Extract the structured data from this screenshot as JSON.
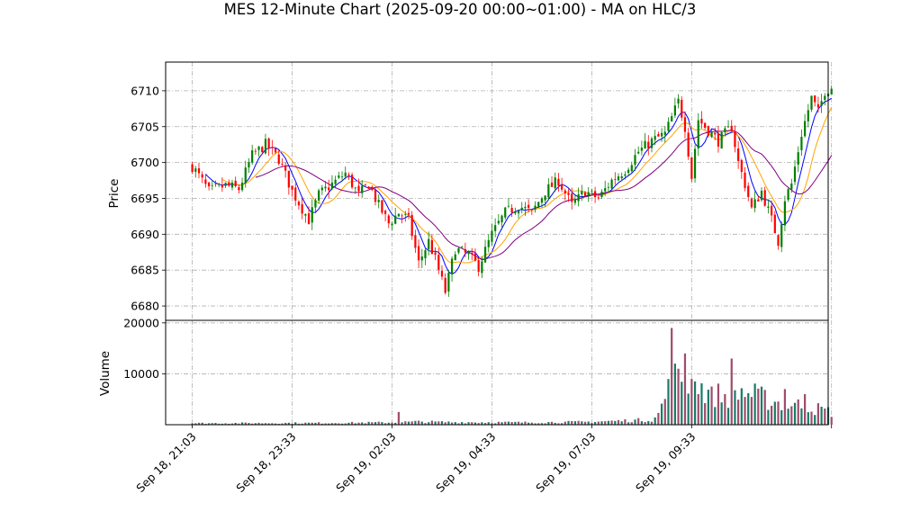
{
  "chart_data": {
    "type": "candlestick",
    "title": "MES 12-Minute Chart (2025-09-20 00:00~01:00) - MA on HLC/3",
    "price_panel": {
      "ylabel": "Price",
      "ylim": [
        6678,
        6714
      ],
      "yticks": [
        6680,
        6685,
        6690,
        6695,
        6700,
        6705,
        6710
      ],
      "grid": true
    },
    "volume_panel": {
      "ylabel": "Volume",
      "ylim": [
        0,
        20500
      ],
      "yticks": [
        10000,
        20000
      ],
      "grid": true
    },
    "x_axis": {
      "unit": "12-minute bars",
      "range": [
        -8,
        191
      ],
      "tick_positions": [
        0,
        30,
        60,
        90,
        120,
        150
      ],
      "tick_labels": [
        "Sep 18, 21:03",
        "Sep 18, 23:33",
        "Sep 19, 02:03",
        "Sep 19, 04:33",
        "Sep 19, 07:03",
        "Sep 19, 09:33"
      ]
    },
    "close_anchors": [
      [
        0,
        6699.5
      ],
      [
        5,
        6696.0
      ],
      [
        10,
        6696.8
      ],
      [
        14,
        6696.3
      ],
      [
        18,
        6701.0
      ],
      [
        22,
        6702.5
      ],
      [
        26,
        6700.5
      ],
      [
        30,
        6696.0
      ],
      [
        35,
        6692.0
      ],
      [
        38,
        6695.5
      ],
      [
        42,
        6697.0
      ],
      [
        46,
        6698.5
      ],
      [
        50,
        6695.5
      ],
      [
        53,
        6697.0
      ],
      [
        56,
        6694.0
      ],
      [
        59,
        6691.5
      ],
      [
        62,
        6693.0
      ],
      [
        65,
        6692.0
      ],
      [
        68,
        6686.0
      ],
      [
        71,
        6689.0
      ],
      [
        73,
        6686.5
      ],
      [
        76,
        6682.0
      ],
      [
        79,
        6688.0
      ],
      [
        83,
        6687.0
      ],
      [
        86,
        6685.5
      ],
      [
        90,
        6690.0
      ],
      [
        94,
        6693.0
      ],
      [
        98,
        6694.0
      ],
      [
        102,
        6693.0
      ],
      [
        106,
        6696.0
      ],
      [
        110,
        6697.5
      ],
      [
        114,
        6694.0
      ],
      [
        118,
        6696.0
      ],
      [
        122,
        6695.0
      ],
      [
        126,
        6697.5
      ],
      [
        130,
        6699.0
      ],
      [
        134,
        6701.5
      ],
      [
        138,
        6703.0
      ],
      [
        142,
        6704.0
      ],
      [
        146,
        6708.5
      ],
      [
        148,
        6705.0
      ],
      [
        150,
        6698.0
      ],
      [
        152,
        6706.0
      ],
      [
        155,
        6704.5
      ],
      [
        158,
        6703.0
      ],
      [
        162,
        6705.0
      ],
      [
        164,
        6700.0
      ],
      [
        166,
        6697.0
      ],
      [
        168,
        6693.5
      ],
      [
        171,
        6696.0
      ],
      [
        174,
        6692.0
      ],
      [
        176,
        6689.0
      ],
      [
        178,
        6695.0
      ],
      [
        180,
        6697.0
      ],
      [
        183,
        6704.0
      ],
      [
        186,
        6709.0
      ],
      [
        188,
        6707.0
      ],
      [
        190,
        6710.0
      ],
      [
        192,
        6710.5
      ]
    ],
    "volume_anchors": [
      [
        0,
        300
      ],
      [
        40,
        350
      ],
      [
        60,
        450
      ],
      [
        68,
        600
      ],
      [
        78,
        500
      ],
      [
        100,
        450
      ],
      [
        118,
        550
      ],
      [
        130,
        800
      ],
      [
        138,
        1000
      ],
      [
        140,
        2000
      ],
      [
        142,
        5500
      ],
      [
        145,
        9500
      ],
      [
        150,
        8000
      ],
      [
        155,
        6500
      ],
      [
        160,
        5500
      ],
      [
        165,
        6500
      ],
      [
        170,
        5500
      ],
      [
        175,
        4500
      ],
      [
        180,
        4000
      ],
      [
        185,
        3500
      ],
      [
        192,
        2500
      ]
    ],
    "volume_spikes": [
      [
        62,
        2500
      ],
      [
        144,
        19000
      ],
      [
        145,
        12000
      ],
      [
        146,
        11000
      ],
      [
        148,
        14000
      ],
      [
        151,
        8500
      ],
      [
        156,
        7500
      ],
      [
        162,
        13000
      ],
      [
        178,
        7000
      ],
      [
        184,
        6000
      ]
    ],
    "moving_averages": [
      {
        "color": "#0000ff",
        "window": 5
      },
      {
        "color": "#ffa500",
        "window": 10
      },
      {
        "color": "#800080",
        "window": 20
      }
    ],
    "up_color": "#008000",
    "down_color": "#ff0000",
    "volume_colors": [
      "#a04c6a",
      "#1a7a6a"
    ]
  }
}
